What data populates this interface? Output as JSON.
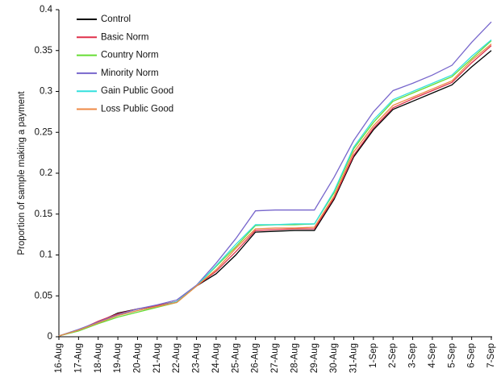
{
  "chart_data": {
    "type": "line",
    "y_label": "Proportion of sample making a payment",
    "categories": [
      "16-Aug",
      "17-Aug",
      "18-Aug",
      "19-Aug",
      "20-Aug",
      "21-Aug",
      "22-Aug",
      "23-Aug",
      "24-Aug",
      "25-Aug",
      "26-Aug",
      "27-Aug",
      "28-Aug",
      "29-Aug",
      "30-Aug",
      "31-Aug",
      "1-Sep",
      "2-Sep",
      "3-Sep",
      "4-Sep",
      "5-Sep",
      "6-Sep",
      "7-Sep"
    ],
    "series": [
      {
        "name": "Control",
        "color": "#000000",
        "values": [
          0.001,
          0.008,
          0.018,
          0.029,
          0.034,
          0.038,
          0.043,
          0.062,
          0.077,
          0.1,
          0.128,
          0.129,
          0.13,
          0.13,
          0.168,
          0.22,
          0.253,
          0.278,
          0.288,
          0.298,
          0.308,
          0.33,
          0.35
        ]
      },
      {
        "name": "Basic Norm",
        "color": "#e0304a",
        "values": [
          0.001,
          0.008,
          0.019,
          0.028,
          0.034,
          0.038,
          0.043,
          0.062,
          0.08,
          0.104,
          0.13,
          0.131,
          0.132,
          0.132,
          0.17,
          0.222,
          0.255,
          0.28,
          0.291,
          0.301,
          0.311,
          0.335,
          0.356
        ]
      },
      {
        "name": "Country Norm",
        "color": "#66dd33",
        "values": [
          0.001,
          0.007,
          0.016,
          0.024,
          0.03,
          0.036,
          0.042,
          0.062,
          0.086,
          0.11,
          0.136,
          0.137,
          0.137,
          0.138,
          0.176,
          0.23,
          0.262,
          0.288,
          0.298,
          0.308,
          0.318,
          0.34,
          0.362
        ]
      },
      {
        "name": "Minority Norm",
        "color": "#7766cc",
        "values": [
          0.001,
          0.009,
          0.018,
          0.027,
          0.034,
          0.039,
          0.045,
          0.063,
          0.09,
          0.12,
          0.154,
          0.155,
          0.155,
          0.155,
          0.195,
          0.24,
          0.275,
          0.301,
          0.31,
          0.32,
          0.332,
          0.36,
          0.385
        ]
      },
      {
        "name": "Gain Public Good",
        "color": "#33e0dd",
        "values": [
          0.001,
          0.008,
          0.017,
          0.026,
          0.032,
          0.037,
          0.043,
          0.062,
          0.087,
          0.113,
          0.137,
          0.137,
          0.138,
          0.138,
          0.178,
          0.232,
          0.265,
          0.29,
          0.3,
          0.31,
          0.32,
          0.343,
          0.363
        ]
      },
      {
        "name": "Loss Public Good",
        "color": "#ee8844",
        "values": [
          0.001,
          0.008,
          0.017,
          0.026,
          0.032,
          0.037,
          0.042,
          0.062,
          0.082,
          0.108,
          0.132,
          0.133,
          0.133,
          0.134,
          0.172,
          0.226,
          0.258,
          0.283,
          0.293,
          0.303,
          0.313,
          0.338,
          0.358
        ]
      }
    ],
    "ylim": [
      0,
      0.4
    ],
    "yticks": [
      0,
      0.05,
      0.1,
      0.15,
      0.2,
      0.25,
      0.3,
      0.35,
      0.4
    ],
    "legend": "upper left",
    "grid": false
  }
}
